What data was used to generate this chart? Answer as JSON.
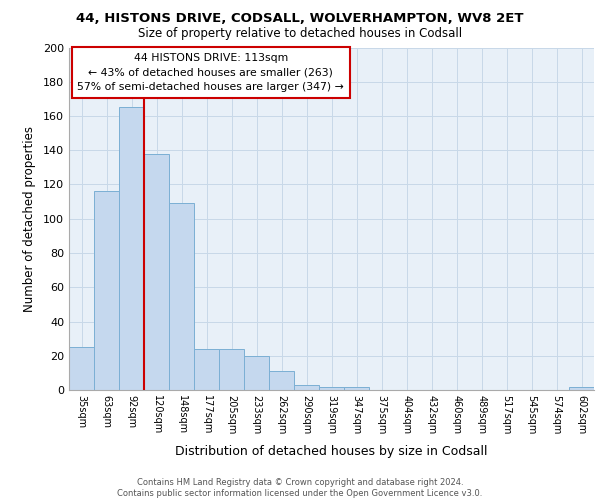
{
  "title1": "44, HISTONS DRIVE, CODSALL, WOLVERHAMPTON, WV8 2ET",
  "title2": "Size of property relative to detached houses in Codsall",
  "xlabel": "Distribution of detached houses by size in Codsall",
  "ylabel": "Number of detached properties",
  "footer1": "Contains HM Land Registry data © Crown copyright and database right 2024.",
  "footer2": "Contains public sector information licensed under the Open Government Licence v3.0.",
  "bar_labels": [
    "35sqm",
    "63sqm",
    "92sqm",
    "120sqm",
    "148sqm",
    "177sqm",
    "205sqm",
    "233sqm",
    "262sqm",
    "290sqm",
    "319sqm",
    "347sqm",
    "375sqm",
    "404sqm",
    "432sqm",
    "460sqm",
    "489sqm",
    "517sqm",
    "545sqm",
    "574sqm",
    "602sqm"
  ],
  "bar_values": [
    25,
    116,
    165,
    138,
    109,
    24,
    24,
    20,
    11,
    3,
    2,
    2,
    0,
    0,
    0,
    0,
    0,
    0,
    0,
    0,
    2
  ],
  "bar_color": "#c5d8ee",
  "bar_edge_color": "#7bafd4",
  "grid_color": "#c8d8e8",
  "bg_color": "#e8f0f8",
  "vline_x": 2.5,
  "vline_color": "#cc0000",
  "annotation_text": "44 HISTONS DRIVE: 113sqm\n← 43% of detached houses are smaller (263)\n57% of semi-detached houses are larger (347) →",
  "annotation_box_color": "#cc0000",
  "ylim": [
    0,
    200
  ],
  "yticks": [
    0,
    20,
    40,
    60,
    80,
    100,
    120,
    140,
    160,
    180,
    200
  ]
}
